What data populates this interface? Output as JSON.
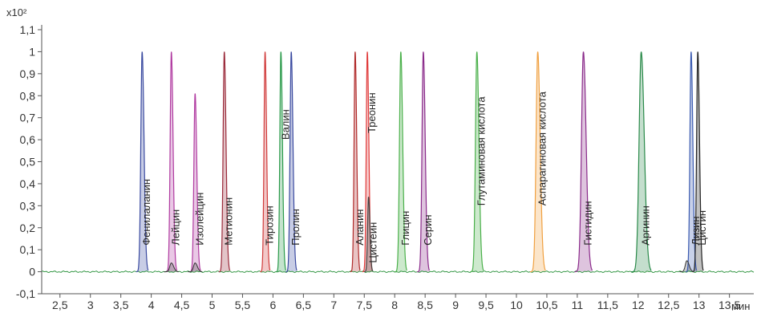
{
  "chart_data": {
    "type": "line",
    "y_multiplier_label": "x10²",
    "x_unit_label": "мин",
    "xlim": [
      2.2,
      13.9
    ],
    "ylim": [
      -0.1,
      1.1
    ],
    "x_ticks": [
      2.5,
      3,
      3.5,
      4,
      4.5,
      5,
      5.5,
      6,
      6.5,
      7,
      7.5,
      8,
      8.5,
      9,
      9.5,
      10,
      10.5,
      11,
      11.5,
      12,
      12.5,
      13,
      13.5
    ],
    "x_tick_labels": [
      "2,5",
      "3",
      "3,5",
      "4",
      "4,5",
      "5",
      "5,5",
      "6",
      "6,5",
      "7",
      "7,5",
      "8",
      "8,5",
      "9",
      "9,5",
      "10",
      "10,5",
      "11",
      "11,5",
      "12",
      "12,5",
      "13",
      "13,5"
    ],
    "y_ticks": [
      -0.1,
      0,
      0.1,
      0.2,
      0.3,
      0.4,
      0.5,
      0.6,
      0.7,
      0.8,
      0.9,
      1,
      1.1
    ],
    "y_tick_labels": [
      "-0,1",
      "0",
      "0,1",
      "0,2",
      "0,3",
      "0,4",
      "0,5",
      "0,6",
      "0,7",
      "0,8",
      "0,9",
      "1",
      "1,1"
    ],
    "series": [
      {
        "name": "Фенилаланин",
        "x": 3.85,
        "height": 1.0,
        "width": 0.055,
        "color": "#3a4aa0"
      },
      {
        "name": "Лейцин",
        "x": 4.33,
        "height": 1.0,
        "width": 0.05,
        "color": "#b03aa0"
      },
      {
        "name": "Изолейцин",
        "x": 4.72,
        "height": 0.81,
        "width": 0.05,
        "color": "#b03aa0"
      },
      {
        "name": "Метионин",
        "x": 5.2,
        "height": 1.0,
        "width": 0.05,
        "color": "#9a2a3a"
      },
      {
        "name": "Тирозин",
        "x": 5.87,
        "height": 1.0,
        "width": 0.045,
        "color": "#d03a3a"
      },
      {
        "name": "Валин",
        "x": 6.13,
        "height": 1.0,
        "width": 0.045,
        "color": "#2a9a4a"
      },
      {
        "name": "Пролин",
        "x": 6.3,
        "height": 1.0,
        "width": 0.05,
        "color": "#3a4aa0"
      },
      {
        "name": "Аланин",
        "x": 7.35,
        "height": 1.0,
        "width": 0.045,
        "color": "#b02a2a"
      },
      {
        "name": "Треонин",
        "x": 7.55,
        "height": 1.0,
        "width": 0.045,
        "color": "#e03a3a"
      },
      {
        "name": "Цистеин",
        "x": 7.57,
        "height": 0.34,
        "width": 0.04,
        "color": "#444444"
      },
      {
        "name": "Глицин",
        "x": 8.1,
        "height": 1.0,
        "width": 0.055,
        "color": "#4ab04a"
      },
      {
        "name": "Серин",
        "x": 8.47,
        "height": 1.0,
        "width": 0.055,
        "color": "#8a2a8a"
      },
      {
        "name": "Глутаминовая кислота",
        "x": 9.35,
        "height": 1.0,
        "width": 0.06,
        "color": "#4ab04a"
      },
      {
        "name": "Аспарагиновая кислота",
        "x": 10.35,
        "height": 1.0,
        "width": 0.07,
        "color": "#f0a040"
      },
      {
        "name": "Гистидин",
        "x": 11.1,
        "height": 1.0,
        "width": 0.08,
        "color": "#8a2a8a"
      },
      {
        "name": "Аргинин",
        "x": 12.05,
        "height": 1.0,
        "width": 0.09,
        "color": "#2a8a4a"
      },
      {
        "name": "Лизин",
        "x": 12.87,
        "height": 1.0,
        "width": 0.05,
        "color": "#3a5ab0"
      },
      {
        "name": "Цистин",
        "x": 12.98,
        "height": 1.0,
        "width": 0.05,
        "color": "#222222"
      }
    ],
    "minor_peaks": [
      {
        "x": 4.33,
        "height": 0.04,
        "color": "#333333"
      },
      {
        "x": 4.72,
        "height": 0.04,
        "color": "#333333"
      },
      {
        "x": 12.8,
        "height": 0.05,
        "color": "#333333"
      }
    ]
  }
}
